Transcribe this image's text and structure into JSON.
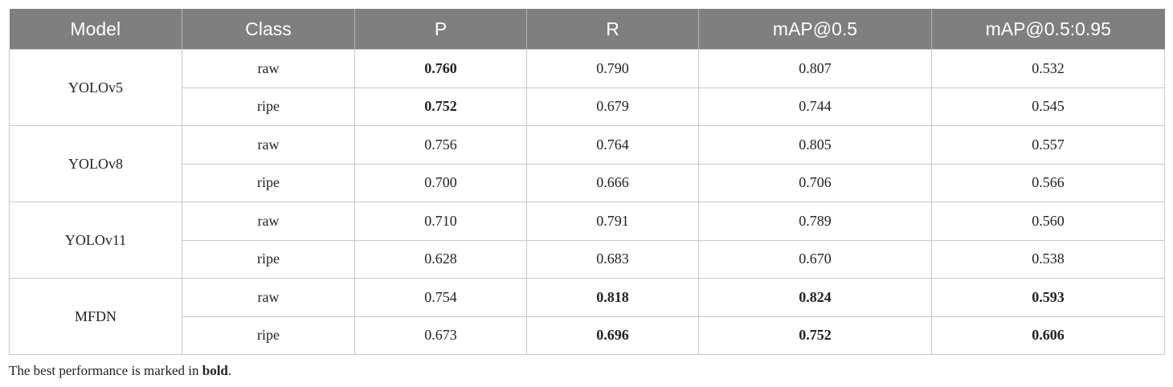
{
  "table": {
    "header": [
      "Model",
      "Class",
      "P",
      "R",
      "mAP@0.5",
      "mAP@0.5:0.95"
    ],
    "groups": [
      {
        "model": "YOLOv5",
        "rows": [
          {
            "class": "raw",
            "cells": [
              "0.760",
              "0.790",
              "0.807",
              "0.532"
            ],
            "bold": [
              true,
              false,
              false,
              false
            ]
          },
          {
            "class": "ripe",
            "cells": [
              "0.752",
              "0.679",
              "0.744",
              "0.545"
            ],
            "bold": [
              true,
              false,
              false,
              false
            ]
          }
        ]
      },
      {
        "model": "YOLOv8",
        "rows": [
          {
            "class": "raw",
            "cells": [
              "0.756",
              "0.764",
              "0.805",
              "0.557"
            ],
            "bold": [
              false,
              false,
              false,
              false
            ]
          },
          {
            "class": "ripe",
            "cells": [
              "0.700",
              "0.666",
              "0.706",
              "0.566"
            ],
            "bold": [
              false,
              false,
              false,
              false
            ]
          }
        ]
      },
      {
        "model": "YOLOv11",
        "rows": [
          {
            "class": "raw",
            "cells": [
              "0.710",
              "0.791",
              "0.789",
              "0.560"
            ],
            "bold": [
              false,
              false,
              false,
              false
            ]
          },
          {
            "class": "ripe",
            "cells": [
              "0.628",
              "0.683",
              "0.670",
              "0.538"
            ],
            "bold": [
              false,
              false,
              false,
              false
            ]
          }
        ]
      },
      {
        "model": "MFDN",
        "rows": [
          {
            "class": "raw",
            "cells": [
              "0.754",
              "0.818",
              "0.824",
              "0.593"
            ],
            "bold": [
              false,
              true,
              true,
              true
            ]
          },
          {
            "class": "ripe",
            "cells": [
              "0.673",
              "0.696",
              "0.752",
              "0.606"
            ],
            "bold": [
              false,
              true,
              true,
              true
            ]
          }
        ]
      }
    ]
  },
  "footnote": [
    "The best performance is marked in ",
    "bold",
    "."
  ]
}
